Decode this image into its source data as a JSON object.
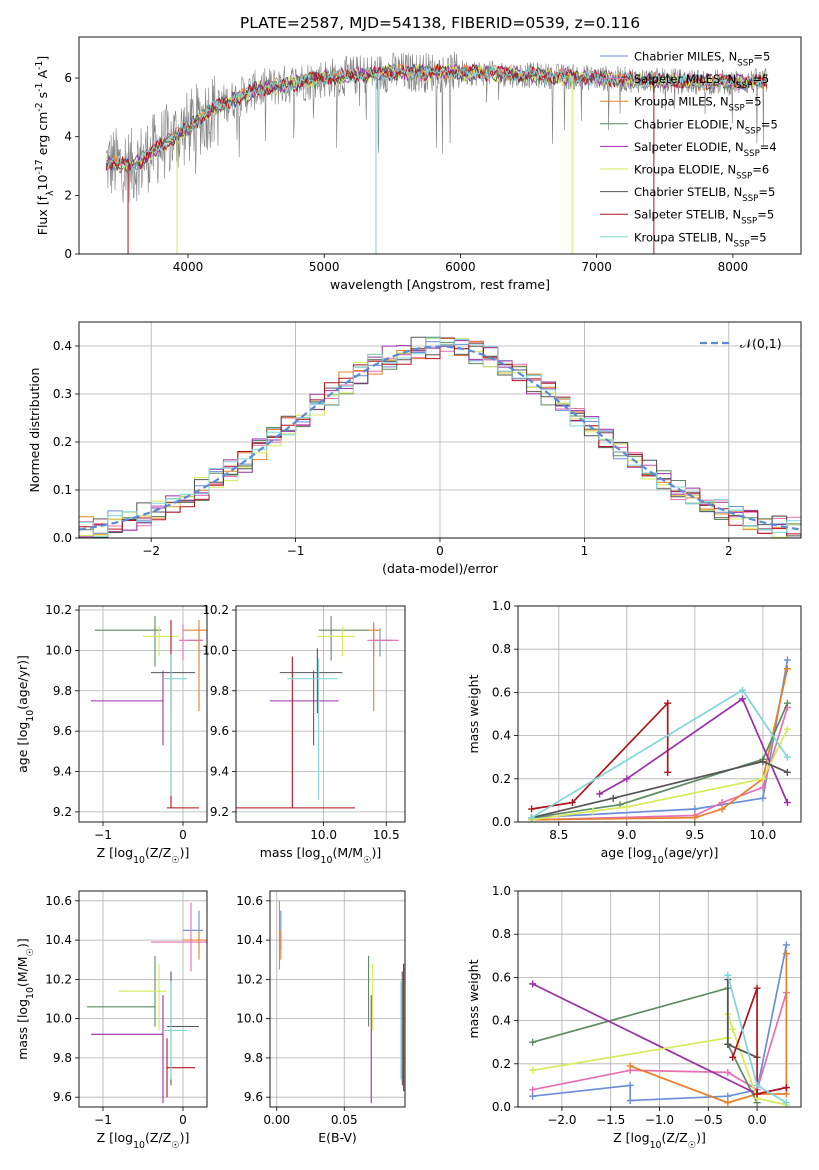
{
  "figure": {
    "title": "PLATE=2587, MJD=54138, FIBERID=0539, z=0.116"
  },
  "chart_data": [
    {
      "id": "spectrum",
      "type": "line",
      "xlabel": "wavelength [Angstrom, rest frame]",
      "ylabel": "Flux [f$_\\lambda$10$^{-17}$ erg cm$^{-2}$ s$^{-1}$ A$^{-1}$]",
      "xlim": [
        3200,
        8500
      ],
      "ylim": [
        0,
        7.4
      ],
      "xticks": [
        4000,
        5000,
        6000,
        7000,
        8000
      ],
      "yticks": [
        0,
        2,
        4,
        6
      ],
      "grid": false,
      "legend_position": "right",
      "continuum_x": [
        3400,
        3600,
        3800,
        4000,
        4200,
        4500,
        5000,
        5500,
        6000,
        6500,
        7000,
        7500,
        8000,
        8250
      ],
      "continuum_y": [
        3.1,
        3.0,
        3.7,
        4.3,
        5.0,
        5.6,
        6.0,
        6.2,
        6.2,
        6.1,
        6.0,
        5.9,
        5.85,
        5.9
      ],
      "series": [
        {
          "name": "Chabrier MILES, N$_{SSP}$=5",
          "color": "#6a8fd8"
        },
        {
          "name": "Salpeter MILES, N$_{SSP}$=5",
          "color": "#e86fb2"
        },
        {
          "name": "Kroupa MILES, N$_{SSP}$=5",
          "color": "#e8802a"
        },
        {
          "name": "Chabrier ELODIE, N$_{SSP}$=5",
          "color": "#5e8b63"
        },
        {
          "name": "Salpeter ELODIE, N$_{SSP}$=4",
          "color": "#9b2fa8"
        },
        {
          "name": "Kroupa ELODIE, N$_{SSP}$=6",
          "color": "#d6ea5a"
        },
        {
          "name": "Chabrier STELIB, N$_{SSP}$=5",
          "color": "#555555"
        },
        {
          "name": "Salpeter STELIB, N$_{SSP}$=5",
          "color": "#b3131d"
        },
        {
          "name": "Kroupa STELIB, N$_{SSP}$=5",
          "color": "#7fd6d8"
        }
      ],
      "data_color": "#808080"
    },
    {
      "id": "residuals",
      "type": "line",
      "xlabel": "(data-model)/error",
      "ylabel": "Normed distribution",
      "xlim": [
        -2.5,
        2.5
      ],
      "ylim": [
        0,
        0.45
      ],
      "xticks": [
        -2,
        -1,
        0,
        1,
        2
      ],
      "yticks": [
        0.0,
        0.1,
        0.2,
        0.3,
        0.4
      ],
      "grid": true,
      "legend": "$\\mathcal{N}(0,1)$",
      "legend_position": "top-right",
      "reference_curve": "normal pdf, mean 0, sigma 1"
    },
    {
      "id": "age-vs-Z",
      "type": "scatter",
      "xlabel": "Z [log$_{10}$(Z/Z$_\\odot$)]",
      "ylabel": "age  [log$_{10}$(age/yr)]",
      "xlim": [
        -1.3,
        0.3
      ],
      "ylim": [
        9.15,
        10.22
      ],
      "xticks": [
        -1,
        0
      ],
      "yticks": [
        9.2,
        9.4,
        9.6,
        9.8,
        10.0,
        10.2
      ],
      "grid": true,
      "points": [
        {
          "series": 0,
          "x": 0.2,
          "y": 10.05,
          "xerr": [
            0.15,
            0.05
          ],
          "yerr": [
            0.1,
            0.06
          ]
        },
        {
          "series": 1,
          "x": 0.0,
          "y": 10.05,
          "xerr": [
            0.05,
            0.25
          ],
          "yerr": [
            0.1,
            0.08
          ]
        },
        {
          "series": 2,
          "x": 0.2,
          "y": 10.1,
          "xerr": [
            0.2,
            0.1
          ],
          "yerr": [
            0.4,
            0.05
          ]
        },
        {
          "series": 3,
          "x": -0.35,
          "y": 10.1,
          "xerr": [
            0.75,
            0.08
          ],
          "yerr": [
            0.18,
            0.07
          ]
        },
        {
          "series": 4,
          "x": -0.25,
          "y": 9.75,
          "xerr": [
            0.9,
            0.0
          ],
          "yerr": [
            0.22,
            0.15
          ]
        },
        {
          "series": 5,
          "x": -0.3,
          "y": 10.07,
          "xerr": [
            0.2,
            0.25
          ],
          "yerr": [
            0.1,
            0.05
          ]
        },
        {
          "series": 6,
          "x": -0.15,
          "y": 9.89,
          "xerr": [
            0.25,
            0.3
          ],
          "yerr": [
            0.2,
            0.08
          ]
        },
        {
          "series": 7,
          "x": -0.15,
          "y": 9.22,
          "xerr": [
            0.05,
            0.35
          ],
          "yerr": [
            0.0,
            0.93
          ]
        },
        {
          "series": 8,
          "x": -0.15,
          "y": 9.86,
          "xerr": [
            0.1,
            0.2
          ],
          "yerr": [
            0.58,
            0.12
          ]
        }
      ]
    },
    {
      "id": "age-vs-mass",
      "type": "scatter",
      "xlabel": "mass [log$_{10}$(M/M$_\\odot$)]",
      "ylabel": "",
      "xlim": [
        9.3,
        10.65
      ],
      "ylim": [
        9.15,
        10.22
      ],
      "xticks": [
        10.0,
        10.5
      ],
      "yticks": [
        9.2,
        9.4,
        9.6,
        9.8,
        10.0,
        10.2
      ],
      "grid": true,
      "points": [
        {
          "series": 0,
          "x": 10.45,
          "y": 10.05,
          "xerr": [
            0.05,
            0.1
          ],
          "yerr": [
            0.08,
            0.06
          ]
        },
        {
          "series": 1,
          "x": 10.4,
          "y": 10.05,
          "xerr": [
            0.05,
            0.2
          ],
          "yerr": [
            0.08,
            0.08
          ]
        },
        {
          "series": 2,
          "x": 10.4,
          "y": 10.1,
          "xerr": [
            0.05,
            0.05
          ],
          "yerr": [
            0.4,
            0.04
          ]
        },
        {
          "series": 3,
          "x": 10.06,
          "y": 10.1,
          "xerr": [
            0.1,
            0.3
          ],
          "yerr": [
            0.15,
            0.07
          ]
        },
        {
          "series": 4,
          "x": 9.92,
          "y": 9.75,
          "xerr": [
            0.35,
            0.2
          ],
          "yerr": [
            0.22,
            0.15
          ]
        },
        {
          "series": 5,
          "x": 10.15,
          "y": 10.07,
          "xerr": [
            0.2,
            0.1
          ],
          "yerr": [
            0.1,
            0.05
          ]
        },
        {
          "series": 6,
          "x": 9.95,
          "y": 9.89,
          "xerr": [
            0.3,
            0.2
          ],
          "yerr": [
            0.2,
            0.12
          ]
        },
        {
          "series": 7,
          "x": 9.75,
          "y": 9.22,
          "xerr": [
            0.45,
            0.5
          ],
          "yerr": [
            0.0,
            0.75
          ]
        },
        {
          "series": 8,
          "x": 9.96,
          "y": 9.86,
          "xerr": [
            0.25,
            0.15
          ],
          "yerr": [
            0.6,
            0.1
          ]
        }
      ]
    },
    {
      "id": "weight-vs-age",
      "type": "line",
      "xlabel": "age  [log$_{10}$(age/yr)]",
      "ylabel": "mass weight",
      "xlim": [
        8.2,
        10.28
      ],
      "ylim": [
        0,
        1.0
      ],
      "xticks": [
        8.5,
        9.0,
        9.5,
        10.0
      ],
      "yticks": [
        0.0,
        0.2,
        0.4,
        0.6,
        0.8,
        1.0
      ],
      "grid": true,
      "series": [
        {
          "series": 0,
          "x": [
            8.3,
            9.5,
            10.0,
            10.18
          ],
          "y": [
            0.02,
            0.06,
            0.11,
            0.75
          ]
        },
        {
          "series": 1,
          "x": [
            8.3,
            9.5,
            9.7,
            10.0,
            10.18
          ],
          "y": [
            0.01,
            0.03,
            0.09,
            0.16,
            0.53
          ]
        },
        {
          "series": 2,
          "x": [
            8.3,
            9.5,
            9.7,
            10.0,
            10.18
          ],
          "y": [
            0.01,
            0.02,
            0.06,
            0.2,
            0.71
          ]
        },
        {
          "series": 3,
          "x": [
            8.3,
            8.95,
            10.0,
            10.18
          ],
          "y": [
            0.02,
            0.08,
            0.29,
            0.55
          ]
        },
        {
          "series": 4,
          "x": [
            8.8,
            9.0,
            9.85,
            10.18
          ],
          "y": [
            0.13,
            0.2,
            0.57,
            0.09
          ]
        },
        {
          "series": 5,
          "x": [
            8.3,
            8.75,
            9.0,
            10.0,
            10.18
          ],
          "y": [
            0.01,
            0.05,
            0.07,
            0.2,
            0.43
          ]
        },
        {
          "series": 6,
          "x": [
            8.3,
            8.9,
            10.0,
            10.18
          ],
          "y": [
            0.02,
            0.11,
            0.28,
            0.23
          ]
        },
        {
          "series": 7,
          "x": [
            8.3,
            8.6,
            9.3,
            9.3
          ],
          "y": [
            0.06,
            0.09,
            0.55,
            0.23
          ]
        },
        {
          "series": 8,
          "x": [
            8.3,
            9.85,
            10.18
          ],
          "y": [
            0.02,
            0.61,
            0.3
          ]
        }
      ]
    },
    {
      "id": "mass-vs-Z",
      "type": "scatter",
      "xlabel": "Z [log$_{10}$(Z/Z$_\\odot$)]",
      "ylabel": "mass [log$_{10}$(M/M$_\\odot$)]",
      "xlim": [
        -1.3,
        0.3
      ],
      "ylim": [
        9.55,
        10.65
      ],
      "xticks": [
        -1,
        0
      ],
      "yticks": [
        9.6,
        9.8,
        10.0,
        10.2,
        10.4,
        10.6
      ],
      "grid": true,
      "points": [
        {
          "series": 0,
          "x": 0.2,
          "y": 10.45,
          "xerr": [
            0.2,
            0.05
          ],
          "yerr": [
            0.1,
            0.1
          ]
        },
        {
          "series": 1,
          "x": 0.1,
          "y": 10.39,
          "xerr": [
            0.5,
            0.2
          ],
          "yerr": [
            0.15,
            0.2
          ]
        },
        {
          "series": 2,
          "x": 0.2,
          "y": 10.4,
          "xerr": [
            0.2,
            0.1
          ],
          "yerr": [
            0.1,
            0.05
          ]
        },
        {
          "series": 3,
          "x": -0.35,
          "y": 10.06,
          "xerr": [
            0.85,
            0.0
          ],
          "yerr": [
            0.1,
            0.26
          ]
        },
        {
          "series": 4,
          "x": -0.25,
          "y": 9.92,
          "xerr": [
            0.9,
            0.0
          ],
          "yerr": [
            0.35,
            0.2
          ]
        },
        {
          "series": 5,
          "x": -0.3,
          "y": 10.14,
          "xerr": [
            0.5,
            0.1
          ],
          "yerr": [
            0.2,
            0.14
          ]
        },
        {
          "series": 6,
          "x": -0.15,
          "y": 9.96,
          "xerr": [
            0.05,
            0.35
          ],
          "yerr": [
            0.3,
            0.28
          ]
        },
        {
          "series": 7,
          "x": -0.2,
          "y": 9.75,
          "xerr": [
            0.0,
            0.35
          ],
          "yerr": [
            0.15,
            0.15
          ]
        },
        {
          "series": 8,
          "x": -0.15,
          "y": 9.94,
          "xerr": [
            0.1,
            0.2
          ],
          "yerr": [
            0.25,
            0.25
          ]
        }
      ]
    },
    {
      "id": "mass-vs-EBV",
      "type": "scatter",
      "xlabel": "E(B-V)",
      "ylabel": "",
      "xlim": [
        -0.005,
        0.095
      ],
      "ylim": [
        9.55,
        10.65
      ],
      "xticks": [
        0.0,
        0.05
      ],
      "yticks": [
        9.6,
        9.8,
        10.0,
        10.2,
        10.4,
        10.6
      ],
      "grid": true,
      "points": [
        {
          "series": 0,
          "x": 0.003,
          "y": 10.45,
          "yerr": [
            0.1,
            0.1
          ]
        },
        {
          "series": 1,
          "x": 0.002,
          "y": 10.4,
          "yerr": [
            0.15,
            0.2
          ]
        },
        {
          "series": 2,
          "x": 0.003,
          "y": 10.4,
          "yerr": [
            0.1,
            0.05
          ]
        },
        {
          "series": 3,
          "x": 0.068,
          "y": 10.06,
          "yerr": [
            0.1,
            0.26
          ]
        },
        {
          "series": 4,
          "x": 0.07,
          "y": 9.92,
          "yerr": [
            0.35,
            0.2
          ]
        },
        {
          "series": 5,
          "x": 0.071,
          "y": 10.14,
          "yerr": [
            0.2,
            0.14
          ]
        },
        {
          "series": 6,
          "x": 0.093,
          "y": 9.96,
          "yerr": [
            0.3,
            0.28
          ]
        },
        {
          "series": 7,
          "x": 0.094,
          "y": 9.95,
          "yerr": [
            0.32,
            0.33
          ]
        },
        {
          "series": 8,
          "x": 0.092,
          "y": 9.94,
          "yerr": [
            0.25,
            0.25
          ]
        }
      ]
    },
    {
      "id": "weight-vs-Z",
      "type": "line",
      "xlabel": "Z [log$_{10}$(Z/Z$_\\odot$)]",
      "ylabel": "mass weight",
      "xlim": [
        -2.45,
        0.45
      ],
      "ylim": [
        0,
        1.0
      ],
      "xticks": [
        -2.0,
        -1.5,
        -1.0,
        -0.5,
        0.0
      ],
      "yticks": [
        0.0,
        0.2,
        0.4,
        0.6,
        0.8,
        1.0
      ],
      "grid": true,
      "series": [
        {
          "series": 0,
          "x": [
            -2.3,
            -1.3,
            -1.3,
            -0.3,
            0.0,
            0.3
          ],
          "y": [
            0.05,
            0.1,
            0.03,
            0.05,
            0.08,
            0.75
          ]
        },
        {
          "series": 1,
          "x": [
            -2.3,
            -1.3,
            -0.3,
            0.0,
            0.3
          ],
          "y": [
            0.08,
            0.17,
            0.16,
            0.08,
            0.53
          ]
        },
        {
          "series": 2,
          "x": [
            -1.3,
            -0.3,
            0.0,
            0.3,
            0.3
          ],
          "y": [
            0.19,
            0.02,
            0.06,
            0.06,
            0.71
          ]
        },
        {
          "series": 3,
          "x": [
            -2.3,
            -0.3,
            -0.3,
            0.0
          ],
          "y": [
            0.3,
            0.55,
            0.29,
            0.02
          ]
        },
        {
          "series": 4,
          "x": [
            -2.3,
            0.0,
            0.3
          ],
          "y": [
            0.57,
            0.06,
            0.09
          ]
        },
        {
          "series": 5,
          "x": [
            -2.3,
            -0.3,
            -0.3,
            -0.25,
            0.0,
            0.3
          ],
          "y": [
            0.17,
            0.32,
            0.43,
            0.36,
            0.04,
            0.01
          ]
        },
        {
          "series": 6,
          "x": [
            -0.3,
            -0.3,
            0.0
          ],
          "y": [
            0.59,
            0.29,
            0.23
          ]
        },
        {
          "series": 7,
          "x": [
            -0.25,
            0.0,
            0.0,
            0.3
          ],
          "y": [
            0.23,
            0.55,
            0.06,
            0.09
          ]
        },
        {
          "series": 8,
          "x": [
            -0.3,
            0.0,
            0.3
          ],
          "y": [
            0.61,
            0.1,
            0.02
          ]
        }
      ]
    }
  ]
}
